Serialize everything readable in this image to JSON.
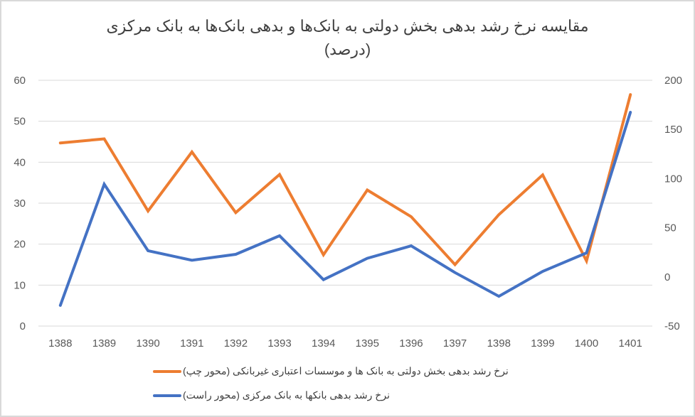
{
  "chart_data": {
    "type": "line",
    "title": "مقایسه نرخ رشد بدهی بخش دولتی به بانک‌ها و بدهی بانک‌ها به بانک مرکزی",
    "subtitle": "(درصد)",
    "xlabel": "",
    "ylabel_left": "",
    "ylabel_right": "",
    "categories": [
      "1388",
      "1389",
      "1390",
      "1391",
      "1392",
      "1393",
      "1394",
      "1395",
      "1396",
      "1397",
      "1398",
      "1399",
      "1400",
      "1401"
    ],
    "y_left": {
      "min": 0,
      "max": 60,
      "step": 10,
      "ticks": [
        "60",
        "50",
        "40",
        "30",
        "20",
        "10",
        "0"
      ]
    },
    "y_right": {
      "min": -50,
      "max": 200,
      "step": 50,
      "ticks": [
        "200",
        "150",
        "100",
        "50",
        "0",
        "-50"
      ]
    },
    "grid": true,
    "legend_position": "bottom",
    "series": [
      {
        "name": "نرخ رشد بدهی بخش دولتی به بانک ها و موسسات اعتباری غیربانکی (محور چپ)",
        "axis": "left",
        "color": "#ED7D31",
        "values": [
          44.7,
          45.7,
          28.1,
          42.5,
          27.7,
          37.0,
          17.4,
          33.2,
          26.7,
          15.0,
          27.2,
          36.9,
          15.9,
          56.5
        ]
      },
      {
        "name": "نرخ رشد بدهی بانکها به بانک مرکزی (محور راست)",
        "axis": "right",
        "color": "#4472C4",
        "values": [
          -29,
          94.3,
          26.6,
          17,
          23,
          41.8,
          -2.8,
          18.9,
          31.6,
          4.4,
          -19.7,
          5.6,
          24.4,
          167.5
        ]
      }
    ]
  },
  "colors": {
    "grid": "#d9d9d9",
    "tick_text": "#595959",
    "frame_border": "#d9d9d9"
  }
}
